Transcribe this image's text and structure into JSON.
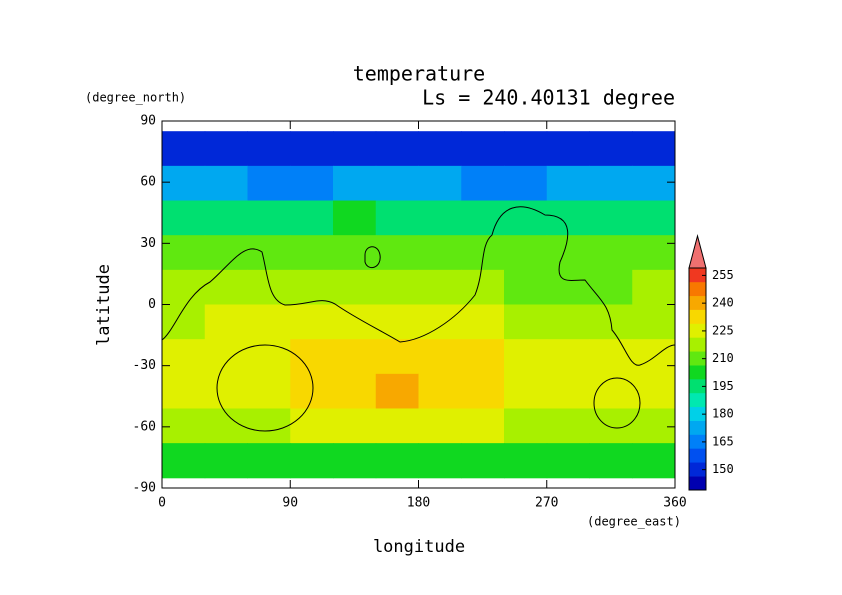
{
  "chart_data": {
    "type": "heatmap",
    "title": "temperature",
    "subtitle": "Ls = 240.40131 degree",
    "y_unit": "(degree_north)",
    "x_unit": "(degree_east)",
    "xlabel": "longitude",
    "ylabel": "latitude",
    "xlim": [
      0,
      360
    ],
    "ylim": [
      -90,
      90
    ],
    "xticks": [
      0,
      90,
      180,
      270,
      360
    ],
    "yticks": [
      90,
      60,
      30,
      0,
      -30,
      -60,
      -90
    ],
    "x": [
      15,
      45,
      75,
      105,
      135,
      165,
      195,
      225,
      255,
      285,
      315,
      345
    ],
    "y": [
      76.5,
      59.5,
      42.5,
      25.5,
      8.5,
      -8.5,
      -25.5,
      -42.5,
      -59.5,
      -76.5
    ],
    "z": [
      [
        150,
        150,
        149,
        148,
        150,
        150,
        149,
        150,
        150,
        150,
        150,
        150
      ],
      [
        172,
        170,
        168,
        166,
        170,
        172,
        170,
        168,
        168,
        170,
        172,
        172
      ],
      [
        195,
        196,
        196,
        198,
        200,
        198,
        196,
        194,
        192,
        194,
        196,
        196
      ],
      [
        210,
        212,
        212,
        213,
        213,
        212,
        211,
        210,
        208,
        208,
        208,
        210
      ],
      [
        216,
        218,
        218,
        218,
        216,
        216,
        216,
        216,
        213,
        213,
        212,
        214
      ],
      [
        220,
        222,
        222,
        224,
        225,
        224,
        224,
        222,
        220,
        218,
        218,
        220
      ],
      [
        222,
        224,
        226,
        230,
        232,
        233,
        232,
        229,
        226,
        224,
        222,
        222
      ],
      [
        224,
        226,
        228,
        232,
        236,
        238,
        235,
        230,
        228,
        226,
        224,
        224
      ],
      [
        218,
        218,
        220,
        224,
        226,
        226,
        224,
        222,
        220,
        218,
        218,
        218
      ],
      [
        205,
        202,
        200,
        204,
        206,
        206,
        205,
        204,
        202,
        202,
        204,
        206
      ]
    ],
    "clim": [
      139,
      259
    ],
    "level_step": 7.5,
    "colors": [
      "#0000b0",
      "#0028d8",
      "#0050f0",
      "#0080f8",
      "#00a8f0",
      "#00d0e8",
      "#00e8b0",
      "#00e070",
      "#10d820",
      "#60e810",
      "#a8f000",
      "#e0f000",
      "#f8d800",
      "#f8a800",
      "#f87800",
      "#f03820"
    ],
    "over_color": "#f07070",
    "colorbar_ticks": [
      150,
      165,
      180,
      195,
      210,
      225,
      240,
      255
    ]
  }
}
